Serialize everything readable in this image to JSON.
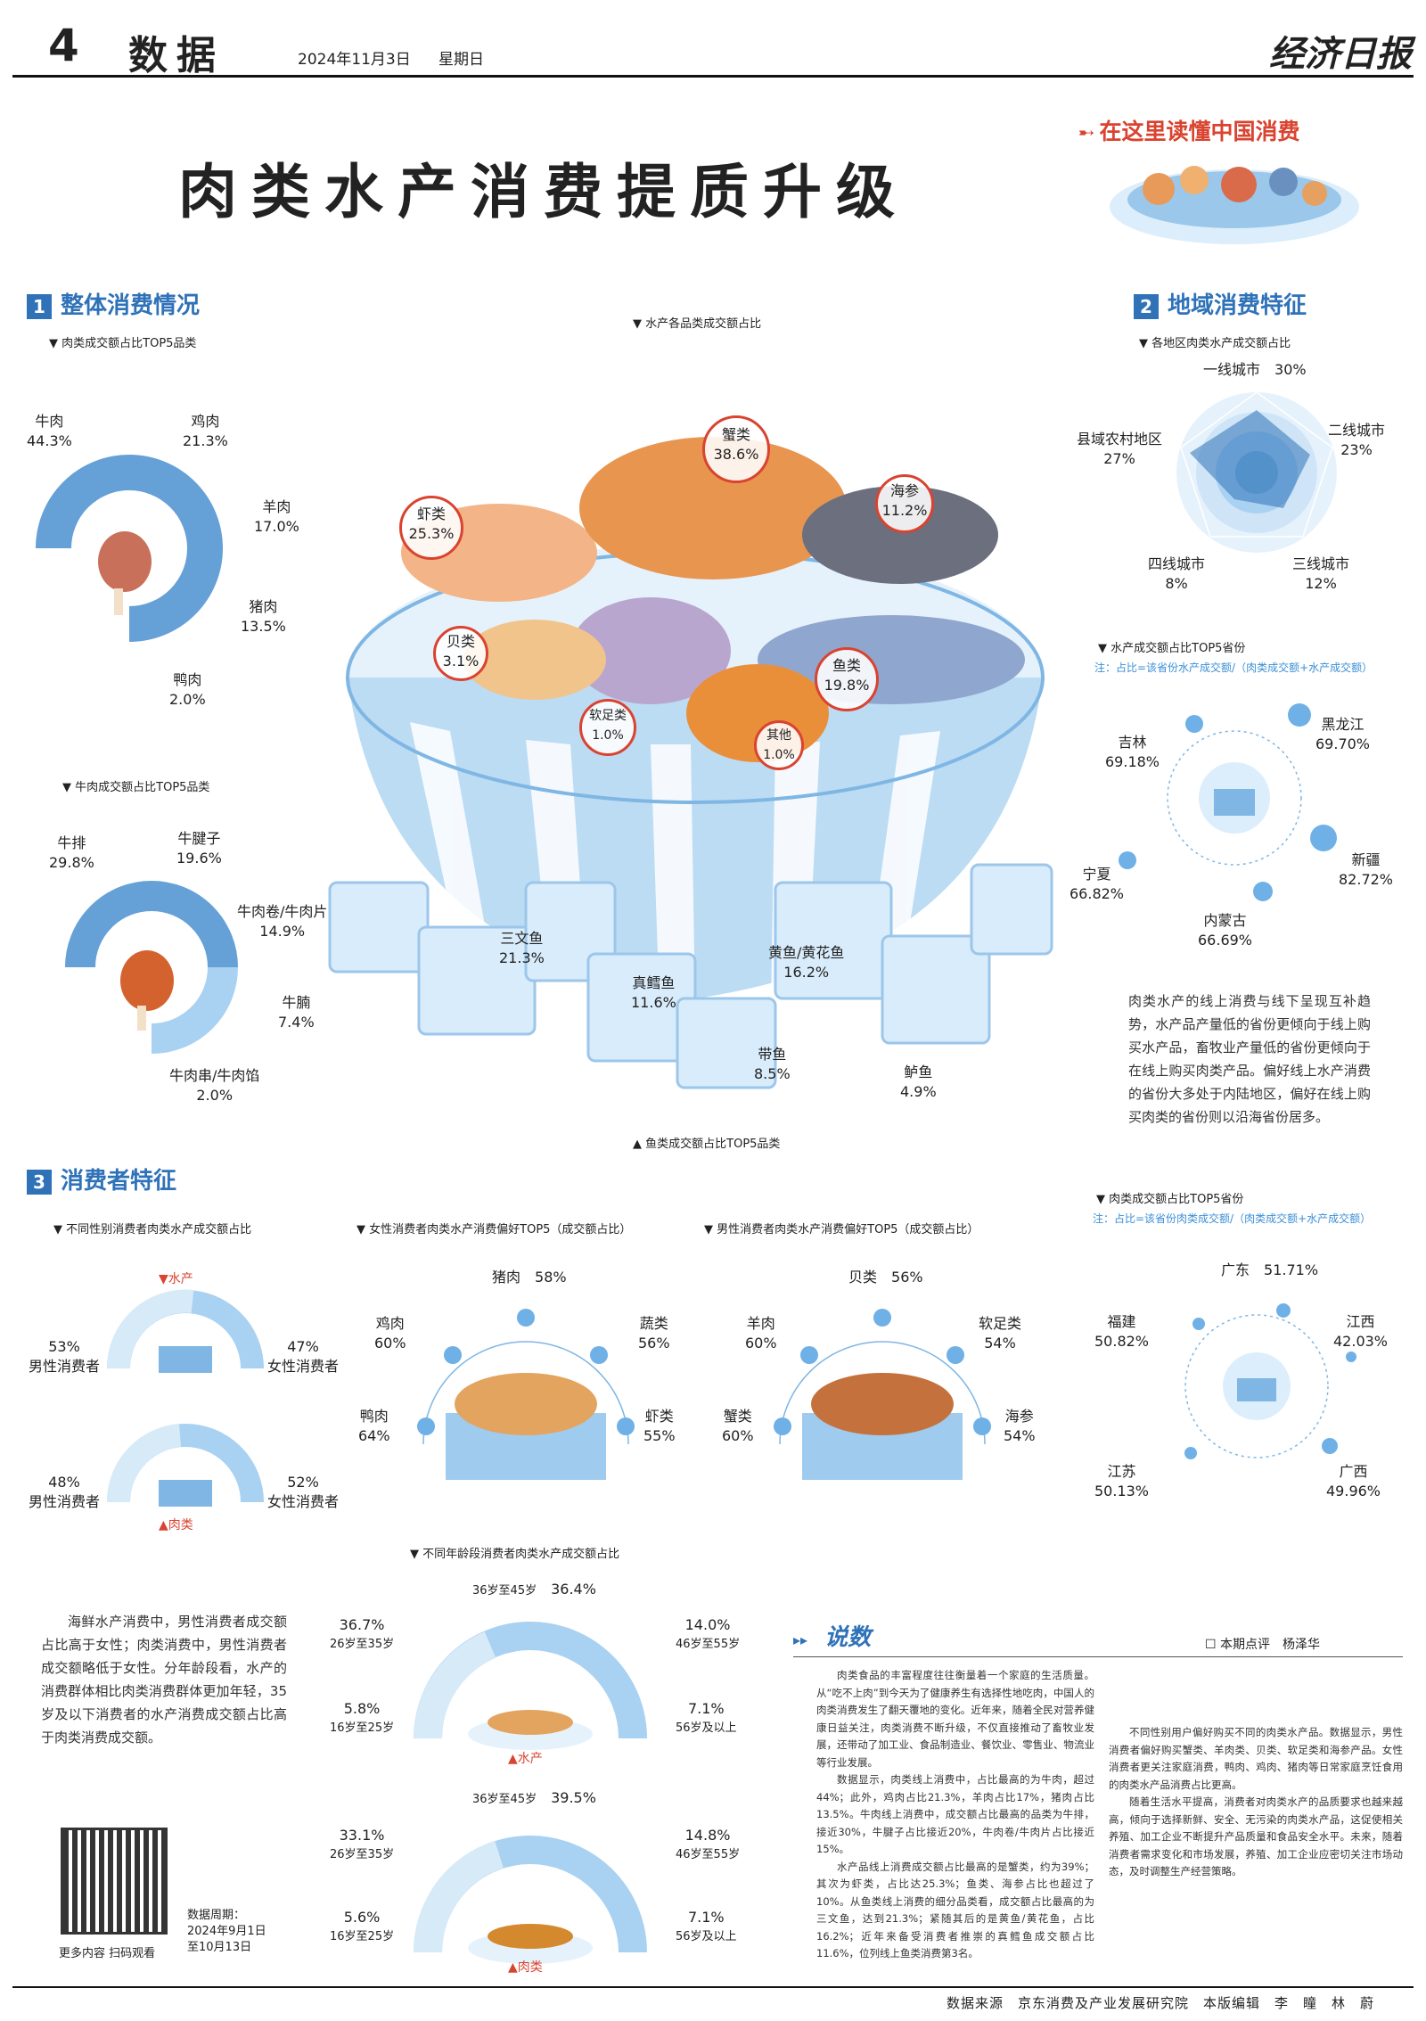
{
  "masthead": {
    "page_number": "4",
    "section": "数据",
    "date": "2024年11月3日",
    "weekday": "星期日",
    "paper": "经济日报"
  },
  "banner": "在这里读懂中国消费",
  "title": "肉类水产消费提质升级",
  "s1": {
    "num": "1",
    "title": "整体消费情况",
    "top5_title": "肉类成交额占比TOP5品类",
    "top5": [
      {
        "name": "牛肉",
        "value": "44.3%"
      },
      {
        "name": "鸡肉",
        "value": "21.3%"
      },
      {
        "name": "羊肉",
        "value": "17.0%"
      },
      {
        "name": "猪肉",
        "value": "13.5%"
      },
      {
        "name": "鸭肉",
        "value": "2.0%"
      }
    ],
    "beef_title": "牛肉成交额占比TOP5品类",
    "beef": [
      {
        "name": "牛排",
        "value": "29.8%"
      },
      {
        "name": "牛腱子",
        "value": "19.6%"
      },
      {
        "name": "牛肉卷/牛肉片",
        "value": "14.9%"
      },
      {
        "name": "牛腩",
        "value": "7.4%"
      },
      {
        "name": "牛肉串/牛肉馅",
        "value": "2.0%"
      }
    ]
  },
  "aqua": {
    "title": "水产各品类成交额占比",
    "items": [
      {
        "name": "蟹类",
        "value": "38.6%"
      },
      {
        "name": "虾类",
        "value": "25.3%"
      },
      {
        "name": "海参",
        "value": "11.2%"
      },
      {
        "name": "贝类",
        "value": "3.1%"
      },
      {
        "name": "鱼类",
        "value": "19.8%"
      },
      {
        "name": "软足类",
        "value": "1.0%"
      },
      {
        "name": "其他",
        "value": "1.0%"
      }
    ],
    "fish_title": "鱼类成交额占比TOP5品类",
    "fish": [
      {
        "name": "三文鱼",
        "value": "21.3%"
      },
      {
        "name": "黄鱼/黄花鱼",
        "value": "16.2%"
      },
      {
        "name": "真鳕鱼",
        "value": "11.6%"
      },
      {
        "name": "带鱼",
        "value": "8.5%"
      },
      {
        "name": "鲈鱼",
        "value": "4.9%"
      }
    ]
  },
  "s2": {
    "num": "2",
    "title": "地域消费特征",
    "region_title": "各地区肉类水产成交额占比",
    "regions": [
      {
        "name": "一线城市",
        "value": "30%"
      },
      {
        "name": "二线城市",
        "value": "23%"
      },
      {
        "name": "三线城市",
        "value": "12%"
      },
      {
        "name": "四线城市",
        "value": "8%"
      },
      {
        "name": "县域农村地区",
        "value": "27%"
      }
    ],
    "aqua_prov_title": "水产成交额占比TOP5省份",
    "aqua_prov_note": "注：占比=该省份水产成交额/（肉类成交额+水产成交额）",
    "aqua_prov": [
      {
        "name": "吉林",
        "value": "69.18%"
      },
      {
        "name": "黑龙江",
        "value": "69.70%"
      },
      {
        "name": "新疆",
        "value": "82.72%"
      },
      {
        "name": "内蒙古",
        "value": "66.69%"
      },
      {
        "name": "宁夏",
        "value": "66.82%"
      }
    ],
    "text": "肉类水产的线上消费与线下呈现互补趋势，水产品产量低的省份更倾向于线上购买水产品，畜牧业产量低的省份更倾向于在线上购买肉类产品。偏好线上水产消费的省份大多处于内陆地区，偏好在线上购买肉类的省份则以沿海省份居多。",
    "meat_prov_title": "肉类成交额占比TOP5省份",
    "meat_prov_note": "注：占比=该省份肉类成交额/（肉类成交额+水产成交额）",
    "meat_prov": [
      {
        "name": "广东",
        "value": "51.71%"
      },
      {
        "name": "福建",
        "value": "50.82%"
      },
      {
        "name": "江西",
        "value": "42.03%"
      },
      {
        "name": "江苏",
        "value": "50.13%"
      },
      {
        "name": "广西",
        "value": "49.96%"
      }
    ]
  },
  "s3": {
    "num": "3",
    "title": "消费者特征",
    "gender_title": "不同性别消费者肉类水产成交额占比",
    "aqua_tag": "▼水产",
    "meat_tag": "▲肉类",
    "gender_aqua": {
      "male_val": "53%",
      "male": "男性消费者",
      "female_val": "47%",
      "female": "女性消费者"
    },
    "gender_meat": {
      "male_val": "48%",
      "male": "男性消费者",
      "female_val": "52%",
      "female": "女性消费者"
    },
    "female_title": "女性消费者肉类水产消费偏好TOP5（成交额占比）",
    "female": [
      {
        "name": "猪肉",
        "value": "58%"
      },
      {
        "name": "鸡肉",
        "value": "60%"
      },
      {
        "name": "蔬类",
        "value": "56%"
      },
      {
        "name": "鸭肉",
        "value": "64%"
      },
      {
        "name": "虾类",
        "value": "55%"
      }
    ],
    "male_title": "男性消费者肉类水产消费偏好TOP5（成交额占比）",
    "male": [
      {
        "name": "贝类",
        "value": "56%"
      },
      {
        "name": "羊肉",
        "value": "60%"
      },
      {
        "name": "软足类",
        "value": "54%"
      },
      {
        "name": "蟹类",
        "value": "60%"
      },
      {
        "name": "海参",
        "value": "54%"
      }
    ],
    "age_title": "不同年龄段消费者肉类水产成交额占比",
    "age_aqua": [
      {
        "name": "36岁至45岁",
        "value": "36.4%"
      },
      {
        "name": "26岁至35岁",
        "value": "36.7%"
      },
      {
        "name": "46岁至55岁",
        "value": "14.0%"
      },
      {
        "name": "16岁至25岁",
        "value": "5.8%"
      },
      {
        "name": "56岁及以上",
        "value": "7.1%"
      }
    ],
    "age_meat": [
      {
        "name": "36岁至45岁",
        "value": "39.5%"
      },
      {
        "name": "26岁至35岁",
        "value": "33.1%"
      },
      {
        "name": "46岁至55岁",
        "value": "14.8%"
      },
      {
        "name": "16岁至25岁",
        "value": "5.6%"
      },
      {
        "name": "56岁及以上",
        "value": "7.1%"
      }
    ],
    "age_aqua_tag": "▲水产",
    "age_meat_tag": "▲肉类",
    "text": "海鲜水产消费中，男性消费者成交额占比高于女性；肉类消费中，男性消费者成交额略低于女性。分年龄段看，水产的消费群体相比肉类消费群体更加年轻，35岁及以下消费者的水产消费成交额占比高于肉类消费成交额。"
  },
  "qr": {
    "caption": "更多内容 扫码观看",
    "period_label": "数据周期：",
    "period": "2024年9月1日至10月13日"
  },
  "shuoshu": {
    "title": "说数",
    "byline": "本期点评　杨泽华",
    "p1": "肉类食品的丰富程度往往衡量着一个家庭的生活质量。从“吃不上肉”到今天为了健康养生有选择性地吃肉，中国人的肉类消费发生了翻天覆地的变化。近年来，随着全民对营养健康日益关注，肉类消费不断升级，不仅直接推动了畜牧业发展，还带动了加工业、食品制造业、餐饮业、零售业、物流业等行业发展。",
    "p2": "数据显示，肉类线上消费中，占比最高的为牛肉，超过44%；此外，鸡肉占比21.3%，羊肉占比17%，猪肉占比13.5%。牛肉线上消费中，成交额占比最高的品类为牛排，接近30%，牛腱子占比接近20%，牛肉卷/牛肉片占比接近15%。",
    "p3": "水产品线上消费成交额占比最高的是蟹类，约为39%；其次为虾类，占比达25.3%；鱼类、海参占比也超过了10%。从鱼类线上消费的细分品类看，成交额占比最高的为三文鱼，达到21.3%；紧随其后的是黄鱼/黄花鱼，占比16.2%；近年来备受消费者推崇的真鳕鱼成交额占比11.6%，位列线上鱼类消费第3名。",
    "p4": "不同性别用户偏好购买不同的肉类水产品。数据显示，男性消费者偏好购买蟹类、羊肉类、贝类、软足类和海参产品。女性消费者更关注家庭消费，鸭肉、鸡肉、猪肉等日常家庭烹饪食用的肉类水产品消费占比更高。",
    "p5": "随着生活水平提高，消费者对肉类水产的品质要求也越来越高，倾向于选择新鲜、安全、无污染的肉类水产品，这促使相关养殖、加工企业不断提升产品质量和食品安全水平。未来，随着消费者需求变化和市场发展，养殖、加工企业应密切关注市场动态，及时调整生产经营策略。"
  },
  "footer": "数据来源　京东消费及产业发展研究院　本版编辑　李　瞳　林　蔚",
  "colors": {
    "accent": "#2f72b8",
    "light": "#a9d1f1",
    "red": "#d9432f",
    "ice": "#dceefb"
  }
}
